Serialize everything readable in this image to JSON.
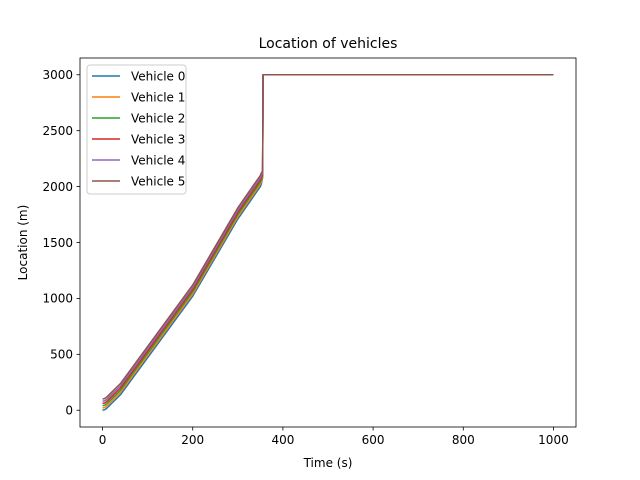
{
  "chart_data": {
    "type": "line",
    "title": "Location of vehicles",
    "xlabel": "Time (s)",
    "ylabel": "Location (m)",
    "xlim": [
      -50,
      1050
    ],
    "ylim": [
      -150,
      3150
    ],
    "xticks": [
      0,
      200,
      400,
      600,
      800,
      1000
    ],
    "yticks": [
      0,
      500,
      1000,
      1500,
      2000,
      2500,
      3000
    ],
    "grid": false,
    "legend_position": "top-left",
    "series": [
      {
        "name": "Vehicle 0",
        "color": "#1f77b4",
        "points": [
          [
            0,
            0
          ],
          [
            5,
            5
          ],
          [
            10,
            20
          ],
          [
            20,
            60
          ],
          [
            40,
            140
          ],
          [
            100,
            470
          ],
          [
            200,
            1020
          ],
          [
            300,
            1710
          ],
          [
            350,
            2000
          ],
          [
            352,
            2020
          ],
          [
            355,
            2080
          ],
          [
            356,
            3000
          ],
          [
            1000,
            3000
          ]
        ]
      },
      {
        "name": "Vehicle 1",
        "color": "#ff7f0e",
        "points": [
          [
            0,
            20
          ],
          [
            5,
            25
          ],
          [
            10,
            40
          ],
          [
            20,
            80
          ],
          [
            40,
            160
          ],
          [
            100,
            490
          ],
          [
            200,
            1040
          ],
          [
            300,
            1730
          ],
          [
            350,
            2020
          ],
          [
            352,
            2040
          ],
          [
            355,
            2090
          ],
          [
            356,
            3000
          ],
          [
            1000,
            3000
          ]
        ]
      },
      {
        "name": "Vehicle 2",
        "color": "#2ca02c",
        "points": [
          [
            0,
            40
          ],
          [
            5,
            45
          ],
          [
            10,
            60
          ],
          [
            20,
            100
          ],
          [
            40,
            180
          ],
          [
            100,
            510
          ],
          [
            200,
            1060
          ],
          [
            300,
            1750
          ],
          [
            350,
            2040
          ],
          [
            352,
            2060
          ],
          [
            355,
            2100
          ],
          [
            356,
            3000
          ],
          [
            1000,
            3000
          ]
        ]
      },
      {
        "name": "Vehicle 3",
        "color": "#d62728",
        "points": [
          [
            0,
            60
          ],
          [
            5,
            65
          ],
          [
            10,
            80
          ],
          [
            20,
            120
          ],
          [
            40,
            200
          ],
          [
            100,
            530
          ],
          [
            200,
            1080
          ],
          [
            300,
            1770
          ],
          [
            350,
            2060
          ],
          [
            352,
            2080
          ],
          [
            355,
            2110
          ],
          [
            356,
            3000
          ],
          [
            1000,
            3000
          ]
        ]
      },
      {
        "name": "Vehicle 4",
        "color": "#9467bd",
        "points": [
          [
            0,
            80
          ],
          [
            5,
            85
          ],
          [
            10,
            100
          ],
          [
            20,
            140
          ],
          [
            40,
            220
          ],
          [
            100,
            550
          ],
          [
            200,
            1100
          ],
          [
            300,
            1790
          ],
          [
            350,
            2080
          ],
          [
            352,
            2100
          ],
          [
            355,
            2120
          ],
          [
            356,
            3000
          ],
          [
            1000,
            3000
          ]
        ]
      },
      {
        "name": "Vehicle 5",
        "color": "#8c564b",
        "points": [
          [
            0,
            100
          ],
          [
            5,
            105
          ],
          [
            10,
            120
          ],
          [
            20,
            160
          ],
          [
            40,
            240
          ],
          [
            100,
            570
          ],
          [
            200,
            1120
          ],
          [
            300,
            1810
          ],
          [
            350,
            2100
          ],
          [
            352,
            2120
          ],
          [
            355,
            2140
          ],
          [
            356,
            3000
          ],
          [
            1000,
            3000
          ]
        ]
      }
    ]
  }
}
